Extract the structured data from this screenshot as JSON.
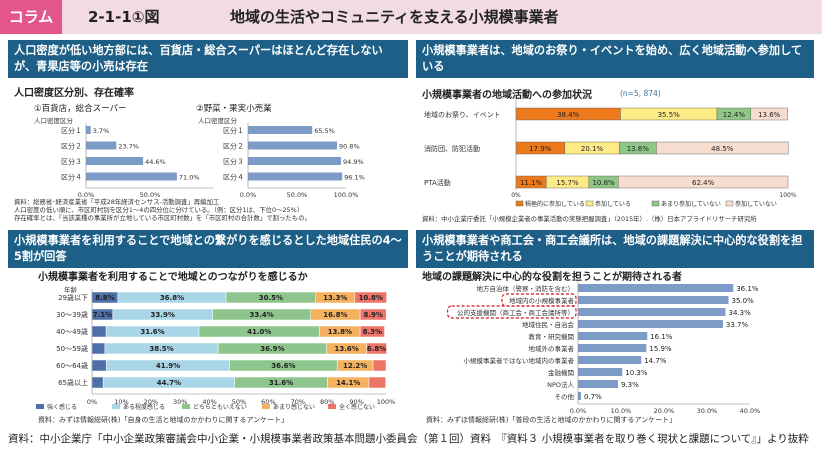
{
  "header": {
    "tag": "コラム",
    "figure_no": "2-1-1①図",
    "title": "地域の生活やコミュニティを支える小規模事業者"
  },
  "panel1": {
    "heading": "人口密度が低い地方部には、百貨店・総合スーパーはほとんど存在しないが、青果店等の小売は存在",
    "subtitle": "人口密度区分別、存在確率",
    "charts": [
      {
        "label": "①百貨店，総合スーパー",
        "axis_title": "人口密度区分",
        "ticks": [
          "0.0%",
          "50.0%"
        ]
      },
      {
        "label": "②野菜・果実小売業",
        "axis_title": "人口密度区分",
        "ticks": [
          "0.0%",
          "50.0%",
          "100.0%"
        ]
      }
    ],
    "notes": [
      "資料：総務省･経済産業省「平成28年経済センサス-活動調査」再編加工",
      "人口密度の低い順に、市区町村別を区分1～4の四分位に分けている。（例：区分1は、下位0～25%）",
      "存在確率とは、「当該業種の事業所が立地している市区町村数」を「市区町村の合計数」で割ったもの。"
    ]
  },
  "panel2": {
    "heading": "小規模事業者は、地域のお祭り・イベントを始め、広く地域活動へ参加している",
    "subtitle": "小規模事業者の地域活動への参加状況",
    "n_label": "(n=5, 874)",
    "ticks": [
      "0%",
      "100%"
    ],
    "legend": [
      "積極的に参加している",
      "参加している",
      "あまり参加していない",
      "参加していない"
    ],
    "note": "資料：中小企業庁委託「小規模企業者の事業活動の実態把握調査」（2015年）.（株）日本アプライドリサーチ研究所"
  },
  "panel3": {
    "heading": "小規模事業者を利用することで地域との繋がりを感じるとした地域住民の4～5割が回答",
    "subtitle": "小規模事業者を利用することで地域とのつながりを感じるか",
    "axis_title": "年齢",
    "ticks": [
      "0%",
      "10%",
      "20%",
      "30%",
      "40%",
      "50%",
      "60%",
      "70%",
      "80%",
      "90%",
      "100%"
    ],
    "legend": [
      "強く感じる",
      "ある程度感じる",
      "どちらともいえない",
      "あまり感じない",
      "全く感じない"
    ],
    "note": "資料：みずほ情報総研(株)「自身の生活と地域のかかわりに関するアンケート」"
  },
  "panel4": {
    "heading": "小規模事業者や商工会・商工会議所は、地域の課題解決に中心的な役割を担うことが期待される",
    "subtitle": "地域の課題解決に中心的な役割を担うことが期待される者",
    "ticks": [
      "0.0%",
      "10.0%",
      "20.0%",
      "30.0%",
      "40.0%"
    ],
    "note": "資料：みずほ情報総研(株)「普段の生活と地域のかかわりに関するアンケート」"
  },
  "source": "資料：中小企業庁「中小企業政策審議会中小企業・小規模事業者政策基本問題小委員会（第１回）資料　『資料３ 小規模事業者を取り巻く現状と課題について』」より抜粋",
  "colors": {
    "header_bg": "#f2dbe5",
    "tag": "#e2568a",
    "panel_head": "#1d5f86",
    "bar_blue": "#7d9bc7",
    "p2": [
      "#ec7a1c",
      "#fdeb87",
      "#8ec786",
      "#f6ddd0"
    ],
    "p3": [
      "#4e6fa7",
      "#a8d6e6",
      "#8dc58c",
      "#f6b15e",
      "#ee7368"
    ],
    "highlight": "#d8181e"
  },
  "chart_data": [
    {
      "type": "bar",
      "title": "①百貨店，総合スーパー",
      "categories": [
        "区分１",
        "区分２",
        "区分３",
        "区分４"
      ],
      "values": [
        3.7,
        23.7,
        44.6,
        71.0
      ],
      "labels": [
        "3.7%",
        "23.7%",
        "44.6%",
        "71.0%"
      ],
      "ylabel": "人口密度区分",
      "xlim": [
        0,
        100
      ]
    },
    {
      "type": "bar",
      "title": "②野菜・果実小売業",
      "categories": [
        "区分１",
        "区分２",
        "区分３",
        "区分４"
      ],
      "values": [
        65.5,
        90.8,
        94.9,
        96.1
      ],
      "labels": [
        "65.5%",
        "90.8%",
        "94.9%",
        "96.1%"
      ],
      "ylabel": "人口密度区分",
      "xlim": [
        0,
        100
      ]
    },
    {
      "type": "bar",
      "stacked": true,
      "title": "小規模事業者の地域活動への参加状況",
      "categories": [
        "地域のお祭り、イベント",
        "消防団、防犯活動",
        "PTA活動"
      ],
      "series": [
        {
          "name": "積極的に参加している",
          "values": [
            38.4,
            17.9,
            11.1
          ],
          "labels": [
            "38.4%",
            "17.9%",
            "11.1%"
          ]
        },
        {
          "name": "参加している",
          "values": [
            35.5,
            20.1,
            15.7
          ],
          "labels": [
            "35.5%",
            "20.1%",
            "15.7%"
          ]
        },
        {
          "name": "あまり参加していない",
          "values": [
            12.4,
            13.6,
            10.8
          ],
          "labels": [
            "12.4%",
            "13.6%",
            "10.8%"
          ]
        },
        {
          "name": "参加していない",
          "values": [
            13.6,
            48.5,
            62.4
          ],
          "labels": [
            "13.6%",
            "48.5%",
            "62.4%"
          ]
        }
      ],
      "xlim": [
        0,
        100
      ]
    },
    {
      "type": "bar",
      "stacked": true,
      "title": "小規模事業者を利用することで地域とのつながりを感じるか",
      "categories": [
        "29歳以下",
        "30～39歳",
        "40～49歳",
        "50～59歳",
        "60～64歳",
        "65歳以上"
      ],
      "series": [
        {
          "name": "強く感じる",
          "values": [
            8.8,
            7.1,
            4.8,
            4.4,
            4.9,
            3.8
          ],
          "labels": [
            "8.8%",
            "7.1%",
            "",
            "",
            "",
            ""
          ]
        },
        {
          "name": "ある程度感じる",
          "values": [
            36.8,
            33.9,
            31.6,
            38.5,
            41.9,
            44.7
          ],
          "labels": [
            "36.8%",
            "33.9%",
            "31.6%",
            "38.5%",
            "41.9%",
            "44.7%"
          ]
        },
        {
          "name": "どちらともいえない",
          "values": [
            30.5,
            33.4,
            41.0,
            36.9,
            36.6,
            31.6
          ],
          "labels": [
            "30.5%",
            "33.4%",
            "41.0%",
            "36.9%",
            "36.6%",
            "31.6%"
          ]
        },
        {
          "name": "あまり感じない",
          "values": [
            13.3,
            16.8,
            13.8,
            13.6,
            12.2,
            14.1
          ],
          "labels": [
            "13.3%",
            "16.8%",
            "13.8%",
            "13.6%",
            "12.2%",
            "14.1%"
          ]
        },
        {
          "name": "全く感じない",
          "values": [
            10.8,
            8.9,
            8.3,
            6.8,
            4.4,
            5.7
          ],
          "labels": [
            "10.8%",
            "8.9%",
            "8.3%",
            "6.8%",
            "",
            ""
          ]
        }
      ],
      "ylabel": "年齢",
      "xlim": [
        0,
        100
      ]
    },
    {
      "type": "bar",
      "title": "地域の課題解決に中心的な役割を担うことが期待される者",
      "categories": [
        "地方自治体（警察・消防を含む）",
        "地域内の小規模事業者",
        "公的支援機関（商工会・商工会議所等）",
        "地域住民・自治会",
        "教育・研究機関",
        "地域外の事業者",
        "小規模事業者ではない地域内の事業者",
        "金融機関",
        "NPO法人",
        "その他"
      ],
      "values": [
        36.1,
        35.0,
        34.3,
        33.7,
        16.1,
        15.9,
        14.7,
        10.3,
        9.3,
        0.7
      ],
      "labels": [
        "36.1%",
        "35.0%",
        "34.3%",
        "33.7%",
        "16.1%",
        "15.9%",
        "14.7%",
        "10.3%",
        "9.3%",
        "0.7%"
      ],
      "highlighted": [
        "地域内の小規模事業者",
        "公的支援機関（商工会・商工会議所等）"
      ],
      "xlim": [
        0,
        40
      ]
    }
  ]
}
